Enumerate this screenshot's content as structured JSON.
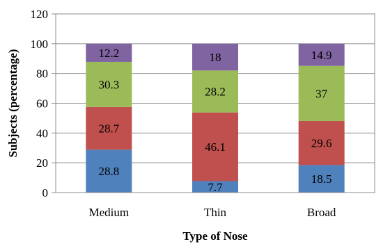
{
  "chart_data": {
    "type": "bar",
    "stacked": true,
    "title": "",
    "xlabel": "Type of Nose",
    "ylabel": "Subjects (percentage)",
    "ylim": [
      0,
      120
    ],
    "yticks": [
      0,
      20,
      40,
      60,
      80,
      100,
      120
    ],
    "grid": true,
    "legend": "none",
    "categories": [
      "Medium",
      "Thin",
      "Broad"
    ],
    "series": [
      {
        "values": [
          28.8,
          7.7,
          18.5
        ],
        "labels": [
          "28.8",
          "7.7",
          "18.5"
        ],
        "color": "#4F81BD"
      },
      {
        "values": [
          28.7,
          46.1,
          29.6
        ],
        "labels": [
          "28.7",
          "46.1",
          "29.6"
        ],
        "color": "#C0504D"
      },
      {
        "values": [
          30.3,
          28.2,
          37
        ],
        "labels": [
          "30.3",
          "28.2",
          "37"
        ],
        "color": "#9BBB59"
      },
      {
        "values": [
          12.2,
          18,
          14.9
        ],
        "labels": [
          "12.2",
          "18",
          "14.9"
        ],
        "color": "#8064A2"
      }
    ]
  }
}
